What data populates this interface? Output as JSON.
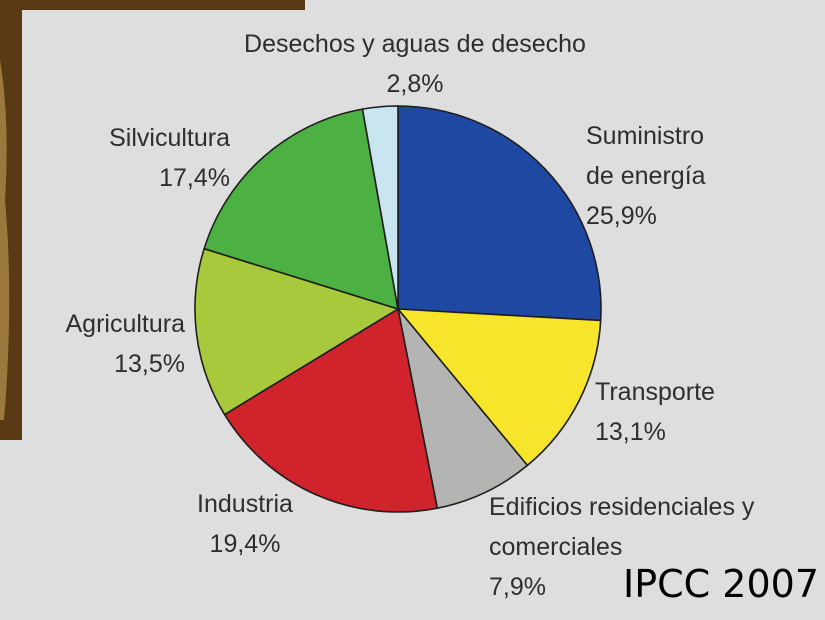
{
  "chart_data": {
    "type": "pie",
    "categories": [
      "Suministro de energía",
      "Transporte",
      "Edificios residenciales y comerciales",
      "Industria",
      "Agricultura",
      "Silvicultura",
      "Desechos y aguas de desecho"
    ],
    "values": [
      25.9,
      13.1,
      7.9,
      19.4,
      13.5,
      17.4,
      2.8
    ],
    "value_labels": [
      "25,9%",
      "13,1%",
      "7,9%",
      "19,4%",
      "13,5%",
      "17,4%",
      "2,8%"
    ],
    "colors": [
      "#1f48a3",
      "#f6e52a",
      "#b4b4b2",
      "#d0232c",
      "#a9c93c",
      "#4db043",
      "#c9e5ef"
    ],
    "source": "IPCC 2007"
  }
}
